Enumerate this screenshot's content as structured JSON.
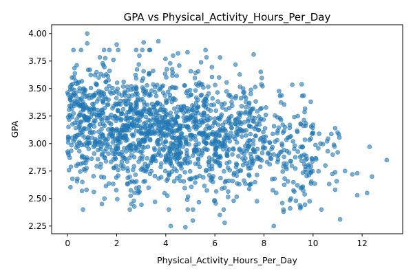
{
  "chart_data": {
    "type": "scatter",
    "title": "GPA vs Physical_Activity_Hours_Per_Day",
    "xlabel": "Physical_Activity_Hours_Per_Day",
    "ylabel": "GPA",
    "xlim": [
      -0.65,
      13.65
    ],
    "ylim": [
      2.18,
      4.08
    ],
    "xticks": [
      0,
      2,
      4,
      6,
      8,
      10,
      12
    ],
    "yticks": [
      2.25,
      2.5,
      2.75,
      3.0,
      3.25,
      3.5,
      3.75,
      4.0
    ],
    "grid": false,
    "marker_color": "#1f77b4",
    "marker_alpha": 0.6,
    "outlier_points": [
      [
        0.8,
        4.0
      ],
      [
        0.8,
        3.91
      ],
      [
        2.0,
        3.9
      ],
      [
        3.1,
        3.92
      ],
      [
        3.7,
        3.93
      ],
      [
        4.5,
        3.82
      ],
      [
        4.3,
        3.8
      ],
      [
        1.7,
        3.85
      ],
      [
        0.2,
        2.68
      ],
      [
        0.4,
        2.68
      ],
      [
        0.6,
        2.65
      ],
      [
        1.4,
        2.45
      ],
      [
        1.5,
        2.5
      ],
      [
        2.6,
        2.45
      ],
      [
        2.7,
        2.48
      ],
      [
        4.2,
        2.25
      ],
      [
        4.8,
        2.24
      ],
      [
        5.1,
        2.3
      ],
      [
        6.2,
        2.35
      ],
      [
        6.4,
        2.28
      ],
      [
        8.4,
        2.25
      ],
      [
        8.8,
        2.38
      ],
      [
        9.1,
        2.5
      ],
      [
        9.3,
        2.48
      ],
      [
        10.9,
        2.58
      ],
      [
        10.9,
        2.74
      ],
      [
        11.1,
        2.31
      ],
      [
        11.3,
        2.75
      ],
      [
        11.6,
        2.72
      ],
      [
        11.8,
        2.73
      ],
      [
        11.8,
        2.53
      ],
      [
        12.2,
        2.55
      ],
      [
        12.3,
        2.97
      ],
      [
        12.4,
        2.7
      ],
      [
        13.0,
        2.85
      ],
      [
        10.6,
        2.93
      ],
      [
        10.8,
        2.9
      ],
      [
        10.9,
        3.14
      ],
      [
        11.0,
        3.1
      ],
      [
        10.0,
        3.1
      ],
      [
        10.3,
        3.0
      ],
      [
        10.5,
        2.8
      ]
    ],
    "clusters": [
      {
        "x_range": [
          0.0,
          2.0
        ],
        "y_mean": 3.2,
        "y_sd": 0.28,
        "count": 360
      },
      {
        "x_range": [
          2.0,
          4.0
        ],
        "y_mean": 3.15,
        "y_sd": 0.28,
        "count": 420
      },
      {
        "x_range": [
          4.0,
          6.0
        ],
        "y_mean": 3.1,
        "y_sd": 0.27,
        "count": 380
      },
      {
        "x_range": [
          6.0,
          8.0
        ],
        "y_mean": 3.05,
        "y_sd": 0.26,
        "count": 280
      },
      {
        "x_range": [
          8.0,
          10.0
        ],
        "y_mean": 2.98,
        "y_sd": 0.25,
        "count": 150
      },
      {
        "x_range": [
          10.0,
          11.2
        ],
        "y_mean": 2.95,
        "y_sd": 0.2,
        "count": 20
      }
    ]
  }
}
